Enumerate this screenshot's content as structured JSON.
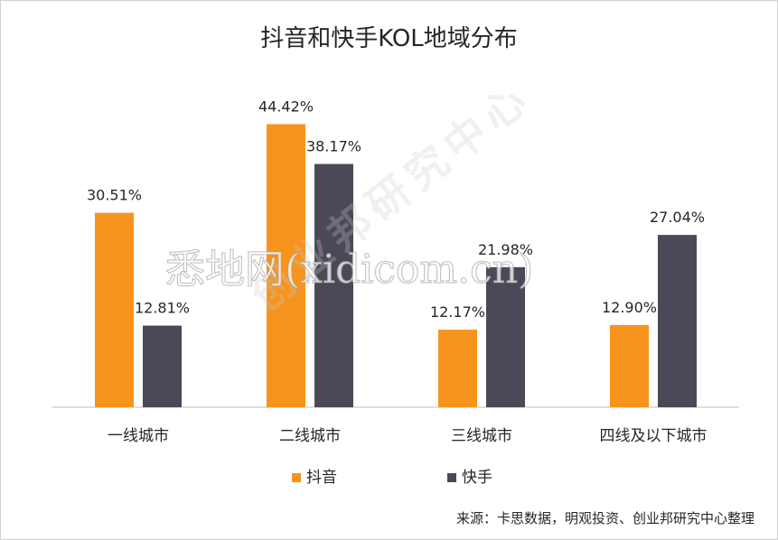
{
  "chart_data": {
    "type": "bar",
    "title": "抖音和快手KOL地域分布",
    "categories": [
      "一线城市",
      "二线城市",
      "三线城市",
      "四线及以下城市"
    ],
    "series": [
      {
        "name": "抖音",
        "color": "#F7941D",
        "values": [
          30.51,
          44.42,
          12.17,
          12.9
        ],
        "labels": [
          "30.51%",
          "44.42%",
          "12.17%",
          "12.90%"
        ]
      },
      {
        "name": "快手",
        "color": "#4B4857",
        "values": [
          12.81,
          38.17,
          21.98,
          27.04
        ],
        "labels": [
          "12.81%",
          "38.17%",
          "21.98%",
          "27.04%"
        ]
      }
    ],
    "ylim": [
      0,
      45
    ],
    "grid": false,
    "legend_position": "bottom"
  },
  "watermarks": {
    "main": "悉地网(xidicom.cn)",
    "diagonal": "创业邦研究中心"
  },
  "source": "来源：卡思数据，明观投资、创业邦研究中心整理"
}
